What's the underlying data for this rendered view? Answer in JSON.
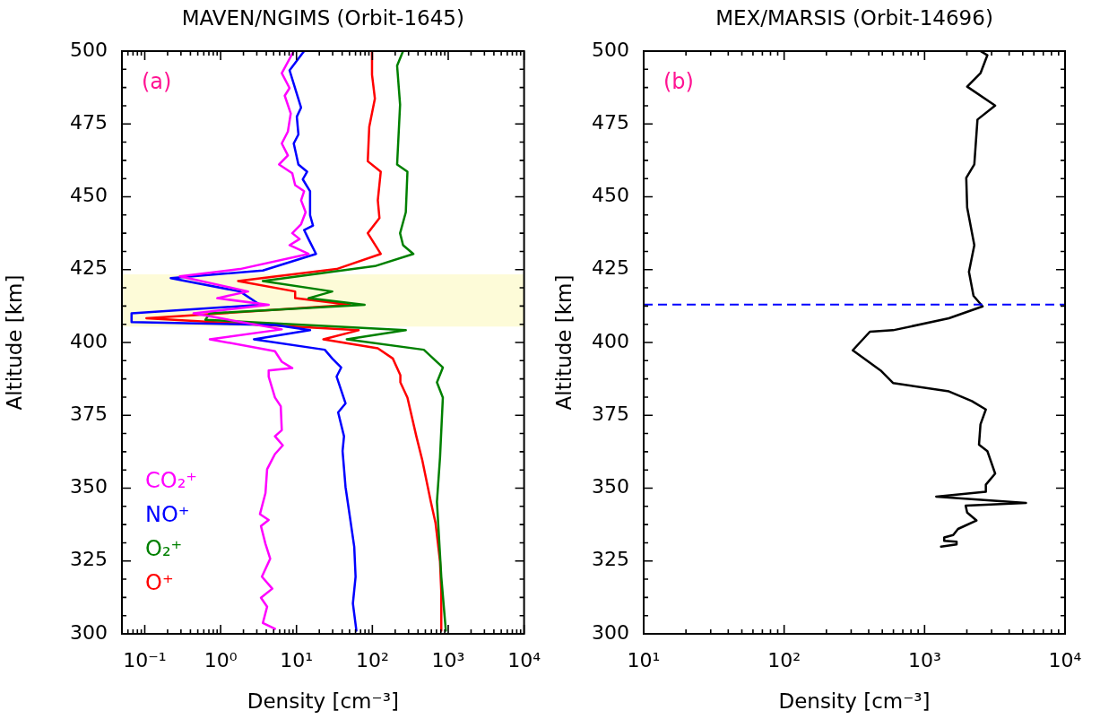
{
  "chart_data": [
    {
      "type": "line",
      "title": "MAVEN/NGIMS (Orbit-1645)",
      "xlabel": "Density [cm⁻³]",
      "ylabel": "Altitude [km]",
      "log": "x",
      "legend": "bottom left",
      "annotations": [
        "(a)"
      ],
      "xlim": [
        0.05,
        10000
      ],
      "xticks": [
        {
          "value": 0.06,
          "label": null
        },
        {
          "value": 0.07,
          "label": null
        },
        {
          "value": 0.08,
          "label": null
        },
        {
          "value": 0.09,
          "label": null
        },
        {
          "value": 0.1,
          "label": "10⁻¹"
        },
        {
          "value": 0.2,
          "label": null
        },
        {
          "value": 0.3,
          "label": null
        },
        {
          "value": 0.4,
          "label": null
        },
        {
          "value": 0.5,
          "label": null
        },
        {
          "value": 0.6,
          "label": null
        },
        {
          "value": 0.7,
          "label": null
        },
        {
          "value": 0.8,
          "label": null
        },
        {
          "value": 0.9,
          "label": null
        },
        {
          "value": 1,
          "label": "10⁰"
        },
        {
          "value": 2,
          "label": null
        },
        {
          "value": 3,
          "label": null
        },
        {
          "value": 4,
          "label": null
        },
        {
          "value": 5,
          "label": null
        },
        {
          "value": 6,
          "label": null
        },
        {
          "value": 7,
          "label": null
        },
        {
          "value": 8,
          "label": null
        },
        {
          "value": 9,
          "label": null
        },
        {
          "value": 10,
          "label": "10¹"
        },
        {
          "value": 20,
          "label": null
        },
        {
          "value": 30,
          "label": null
        },
        {
          "value": 40,
          "label": null
        },
        {
          "value": 50,
          "label": null
        },
        {
          "value": 60,
          "label": null
        },
        {
          "value": 70,
          "label": null
        },
        {
          "value": 80,
          "label": null
        },
        {
          "value": 90,
          "label": null
        },
        {
          "value": 100,
          "label": "10²"
        },
        {
          "value": 200,
          "label": null
        },
        {
          "value": 300,
          "label": null
        },
        {
          "value": 400,
          "label": null
        },
        {
          "value": 500,
          "label": null
        },
        {
          "value": 600,
          "label": null
        },
        {
          "value": 700,
          "label": null
        },
        {
          "value": 800,
          "label": null
        },
        {
          "value": 900,
          "label": null
        },
        {
          "value": 1000,
          "label": "10³"
        },
        {
          "value": 2000,
          "label": null
        },
        {
          "value": 3000,
          "label": null
        },
        {
          "value": 4000,
          "label": null
        },
        {
          "value": 5000,
          "label": null
        },
        {
          "value": 6000,
          "label": null
        },
        {
          "value": 7000,
          "label": null
        },
        {
          "value": 8000,
          "label": null
        },
        {
          "value": 9000,
          "label": null
        },
        {
          "value": 10000,
          "label": "10⁴"
        }
      ],
      "ylim": [
        300,
        500
      ],
      "yticks": [
        300,
        {
          "value": 306.25,
          "label": null
        },
        {
          "value": 312.5,
          "label": null
        },
        {
          "value": 318.75,
          "label": null
        },
        325,
        {
          "value": 331.25,
          "label": null
        },
        {
          "value": 337.5,
          "label": null
        },
        {
          "value": 343.75,
          "label": null
        },
        350,
        {
          "value": 356.25,
          "label": null
        },
        {
          "value": 362.5,
          "label": null
        },
        {
          "value": 368.75,
          "label": null
        },
        375,
        {
          "value": 381.25,
          "label": null
        },
        {
          "value": 387.5,
          "label": null
        },
        {
          "value": 393.75,
          "label": null
        },
        400,
        {
          "value": 406.25,
          "label": null
        },
        {
          "value": 412.5,
          "label": null
        },
        {
          "value": 418.75,
          "label": null
        },
        425,
        {
          "value": 431.25,
          "label": null
        },
        {
          "value": 437.5,
          "label": null
        },
        {
          "value": 443.75,
          "label": null
        },
        450,
        {
          "value": 456.25,
          "label": null
        },
        {
          "value": 462.5,
          "label": null
        },
        {
          "value": 468.75,
          "label": null
        },
        475,
        {
          "value": 481.25,
          "label": null
        },
        {
          "value": 487.5,
          "label": null
        },
        {
          "value": 493.75,
          "label": null
        },
        500
      ],
      "bands": [
        {
          "axis": "y",
          "from": 405.5,
          "to": 423.4,
          "color": "#fdfbd8"
        }
      ],
      "series": [
        {
          "name": "CO₂⁺",
          "color": "#ff00ff",
          "x": [
            9.2,
            6.4,
            8.1,
            7.0,
            8.4,
            7.7,
            6.4,
            7.7,
            5.9,
            8.8,
            9.6,
            12.6,
            11.5,
            13.2,
            11.5,
            8.8,
            11.0,
            8.1,
            14.4,
            1.8,
            0.29,
            2.3,
            0.9,
            4.3,
            0.44,
            6.4,
            0.72,
            5.2,
            6.4,
            8.8,
            4.3,
            4.3,
            5.2,
            6.2,
            6.4,
            5.2,
            6.6,
            5.2,
            4.1,
            3.9,
            3.3,
            4.3,
            3.4,
            3.9,
            4.5,
            3.5,
            4.8,
            3.4,
            4.1,
            3.6,
            5.2
          ],
          "values": [
            500,
            492.4,
            487.3,
            484.7,
            478.6,
            472.4,
            468.3,
            464.2,
            461.1,
            458.1,
            454,
            451.9,
            448.8,
            444.7,
            440.6,
            437.5,
            435.5,
            433.4,
            430.4,
            425.2,
            422.7,
            417.5,
            415.2,
            412.9,
            410,
            404.5,
            401.1,
            397,
            393.4,
            391.2,
            390.4,
            388.3,
            381.1,
            378.1,
            369.9,
            367.8,
            364.7,
            361.7,
            356.5,
            348.3,
            341.1,
            339.1,
            337,
            330.9,
            325.8,
            319.6,
            315.5,
            312.4,
            309.3,
            303.7,
            301.7
          ]
        },
        {
          "name": "NO⁺",
          "color": "#0000ff",
          "x": [
            12.6,
            8.1,
            11.5,
            10.1,
            10.6,
            9.2,
            10.6,
            13.8,
            12.1,
            15.1,
            15.1,
            16.5,
            12.6,
            14.4,
            18.1,
            3.6,
            0.22,
            1.8,
            3.3,
            0.067,
            0.067,
            5.2,
            15.1,
            2.75,
            23.6,
            29.6,
            38.8,
            33.8,
            44.3,
            35.4,
            42.3,
            40.5,
            44.3,
            50.6,
            57.7,
            60.1,
            55.4,
            61.6
          ],
          "values": [
            500,
            493.4,
            480.6,
            477.5,
            471.4,
            468.3,
            461.1,
            458.6,
            456,
            451.9,
            443.7,
            440.1,
            438.6,
            435.5,
            430.4,
            424.7,
            422.1,
            417.5,
            412.9,
            410,
            407,
            406,
            404.2,
            401.1,
            397.5,
            394.5,
            391.4,
            388.3,
            379.1,
            376,
            367.8,
            362.7,
            350.4,
            340.1,
            329.9,
            319.6,
            310.4,
            301.1
          ]
        },
        {
          "name": "O₂⁺",
          "color": "#008000",
          "x": [
            254,
            212,
            232,
            212,
            290,
            276,
            232,
            254,
            347,
            108,
            3.6,
            29.6,
            14.4,
            79,
            0.72,
            0.63,
            276,
            46,
            477,
            850,
            710,
            850,
            780,
            710,
            810,
            930
          ],
          "values": [
            500,
            495,
            481.6,
            461.1,
            458.6,
            444.7,
            437.5,
            433.4,
            430.4,
            426.2,
            421.1,
            417.5,
            415.2,
            412.9,
            410,
            407.8,
            404.2,
            401.1,
            397.5,
            391.4,
            386.3,
            381.1,
            360.6,
            345.3,
            319.6,
            301.1
          ]
        },
        {
          "name": "O⁺",
          "color": "#ff0000",
          "x": [
            99,
            99,
            108,
            91,
            87,
            129,
            118,
            124,
            87,
            129,
            33.8,
            1.7,
            9.6,
            9.6,
            50.6,
            0.105,
            66,
            22.6,
            118,
            186,
            234,
            234,
            290,
            380,
            455,
            590,
            680,
            780,
            810,
            810
          ],
          "values": [
            500,
            491.9,
            483.7,
            474,
            462.2,
            458.6,
            448.8,
            442.7,
            437.5,
            430.4,
            425.2,
            421.1,
            417.5,
            415.2,
            412.9,
            408.3,
            404.2,
            401.1,
            398,
            394.5,
            388.8,
            386.3,
            381.1,
            367.8,
            359.6,
            345.3,
            338.1,
            324.8,
            314.5,
            301.1
          ]
        }
      ]
    },
    {
      "type": "line",
      "title": "MEX/MARSIS (Orbit-14696)",
      "xlabel": "Density [cm⁻³]",
      "ylabel": "Altitude [km]",
      "log": "x",
      "annotations": [
        "(b)"
      ],
      "xlim": [
        10,
        10000
      ],
      "xticks": [
        {
          "value": 10,
          "label": "10¹"
        },
        {
          "value": 20,
          "label": null
        },
        {
          "value": 30,
          "label": null
        },
        {
          "value": 40,
          "label": null
        },
        {
          "value": 50,
          "label": null
        },
        {
          "value": 60,
          "label": null
        },
        {
          "value": 70,
          "label": null
        },
        {
          "value": 80,
          "label": null
        },
        {
          "value": 90,
          "label": null
        },
        {
          "value": 100,
          "label": "10²"
        },
        {
          "value": 200,
          "label": null
        },
        {
          "value": 300,
          "label": null
        },
        {
          "value": 400,
          "label": null
        },
        {
          "value": 500,
          "label": null
        },
        {
          "value": 600,
          "label": null
        },
        {
          "value": 700,
          "label": null
        },
        {
          "value": 800,
          "label": null
        },
        {
          "value": 900,
          "label": null
        },
        {
          "value": 1000,
          "label": "10³"
        },
        {
          "value": 2000,
          "label": null
        },
        {
          "value": 3000,
          "label": null
        },
        {
          "value": 4000,
          "label": null
        },
        {
          "value": 5000,
          "label": null
        },
        {
          "value": 6000,
          "label": null
        },
        {
          "value": 7000,
          "label": null
        },
        {
          "value": 8000,
          "label": null
        },
        {
          "value": 9000,
          "label": null
        },
        {
          "value": 10000,
          "label": "10⁴"
        }
      ],
      "ylim": [
        300,
        500
      ],
      "yticks": [
        300,
        {
          "value": 306.25,
          "label": null
        },
        {
          "value": 312.5,
          "label": null
        },
        {
          "value": 318.75,
          "label": null
        },
        325,
        {
          "value": 331.25,
          "label": null
        },
        {
          "value": 337.5,
          "label": null
        },
        {
          "value": 343.75,
          "label": null
        },
        350,
        {
          "value": 356.25,
          "label": null
        },
        {
          "value": 362.5,
          "label": null
        },
        {
          "value": 368.75,
          "label": null
        },
        375,
        {
          "value": 381.25,
          "label": null
        },
        {
          "value": 387.5,
          "label": null
        },
        {
          "value": 393.75,
          "label": null
        },
        400,
        {
          "value": 406.25,
          "label": null
        },
        {
          "value": 412.5,
          "label": null
        },
        {
          "value": 418.75,
          "label": null
        },
        425,
        {
          "value": 431.25,
          "label": null
        },
        {
          "value": 437.5,
          "label": null
        },
        {
          "value": 443.75,
          "label": null
        },
        450,
        {
          "value": 456.25,
          "label": null
        },
        {
          "value": 462.5,
          "label": null
        },
        {
          "value": 468.75,
          "label": null
        },
        475,
        {
          "value": 481.25,
          "label": null
        },
        {
          "value": 487.5,
          "label": null
        },
        {
          "value": 493.75,
          "label": null
        },
        500
      ],
      "ref_lines": [
        {
          "axis": "y",
          "value": 413,
          "color": "#0000ff",
          "line_style": "dashed"
        }
      ],
      "series": [
        {
          "color": "#000000",
          "x": [
            2500,
            2800,
            2500,
            2010,
            3180,
            2380,
            2260,
            1980,
            2010,
            2260,
            2070,
            2230,
            2590,
            1490,
            596,
            408,
            308,
            486,
            596,
            1490,
            2170,
            2730,
            2500,
            2440,
            2800,
            3180,
            2730,
            2730,
            1210,
            5270,
            1960,
            2010,
            2340,
            1920,
            1730,
            1600,
            1380,
            1380,
            1690,
            1690,
            1310
          ],
          "values": [
            500,
            498.6,
            492.4,
            487.8,
            481.3,
            476.5,
            461.1,
            456.5,
            446.3,
            433.4,
            424.2,
            416,
            412.4,
            408.3,
            404.2,
            403.7,
            397.3,
            390.4,
            386.1,
            383.2,
            379.9,
            377,
            371.9,
            364.9,
            362.7,
            355,
            351.2,
            348.8,
            347.1,
            344.9,
            344,
            341.6,
            338.9,
            337,
            336,
            333.9,
            333.1,
            331.9,
            331.6,
            330.7,
            329.9
          ]
        }
      ]
    }
  ]
}
